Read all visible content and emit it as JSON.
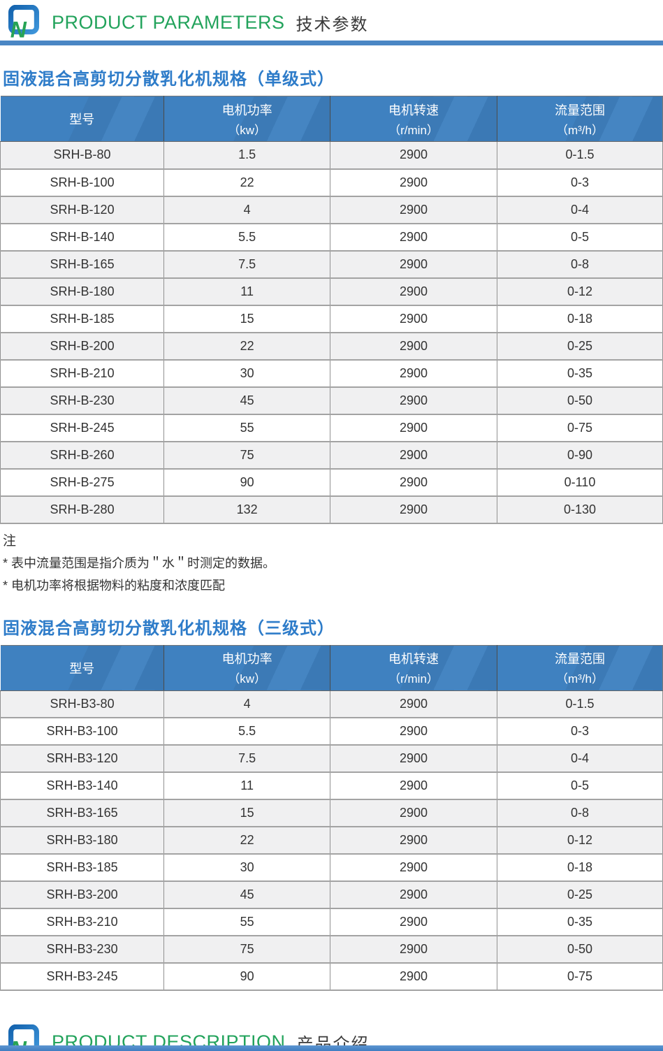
{
  "header": {
    "title_en": "PRODUCT PARAMETERS",
    "title_cn": "技术参数"
  },
  "footer": {
    "title_en": "PRODUCT DESCRIPTION",
    "title_cn": "产品介绍"
  },
  "colors": {
    "banner_green": "#23a35c",
    "banner_cn_gray": "#3a3a3a",
    "rule_blue": "#4a86c4",
    "section_title_blue": "#2e7cc9",
    "table_header_blue": "#3f81c0",
    "shaded_row": "#f0f0f1"
  },
  "notes": {
    "label": "注",
    "items": [
      "* 表中流量范围是指介质为＂水＂时测定的数据。",
      "* 电机功率将根据物料的粘度和浓度匹配"
    ]
  },
  "tables": [
    {
      "title": "固液混合高剪切分散乳化机规格（单级式）",
      "columns": [
        {
          "title": "型号",
          "unit": ""
        },
        {
          "title": "电机功率",
          "unit": "（kw）"
        },
        {
          "title": "电机转速",
          "unit": "（r/min）"
        },
        {
          "title": "流量范围",
          "unit": "（m³/h）"
        }
      ],
      "rows": [
        {
          "cells": [
            "SRH-B-80",
            "1.5",
            "2900",
            "0-1.5"
          ],
          "shaded": true
        },
        {
          "cells": [
            "SRH-B-100",
            "22",
            "2900",
            "0-3"
          ],
          "shaded": false
        },
        {
          "cells": [
            "SRH-B-120",
            "4",
            "2900",
            "0-4"
          ],
          "shaded": true
        },
        {
          "cells": [
            "SRH-B-140",
            "5.5",
            "2900",
            "0-5"
          ],
          "shaded": false
        },
        {
          "cells": [
            "SRH-B-165",
            "7.5",
            "2900",
            "0-8"
          ],
          "shaded": true
        },
        {
          "cells": [
            "SRH-B-180",
            "11",
            "2900",
            "0-12"
          ],
          "shaded": true
        },
        {
          "cells": [
            "SRH-B-185",
            "15",
            "2900",
            "0-18"
          ],
          "shaded": false
        },
        {
          "cells": [
            "SRH-B-200",
            "22",
            "2900",
            "0-25"
          ],
          "shaded": true
        },
        {
          "cells": [
            "SRH-B-210",
            "30",
            "2900",
            "0-35"
          ],
          "shaded": false
        },
        {
          "cells": [
            "SRH-B-230",
            "45",
            "2900",
            "0-50"
          ],
          "shaded": true
        },
        {
          "cells": [
            "SRH-B-245",
            "55",
            "2900",
            "0-75"
          ],
          "shaded": false
        },
        {
          "cells": [
            "SRH-B-260",
            "75",
            "2900",
            "0-90"
          ],
          "shaded": true
        },
        {
          "cells": [
            "SRH-B-275",
            "90",
            "2900",
            "0-110"
          ],
          "shaded": false
        },
        {
          "cells": [
            "SRH-B-280",
            "132",
            "2900",
            "0-130"
          ],
          "shaded": true
        }
      ]
    },
    {
      "title": "固液混合高剪切分散乳化机规格（三级式）",
      "columns": [
        {
          "title": "型号",
          "unit": ""
        },
        {
          "title": "电机功率",
          "unit": "（kw）"
        },
        {
          "title": "电机转速",
          "unit": "（r/min）"
        },
        {
          "title": "流量范围",
          "unit": "（m³/h）"
        }
      ],
      "rows": [
        {
          "cells": [
            "SRH-B3-80",
            "4",
            "2900",
            "0-1.5"
          ],
          "shaded": true
        },
        {
          "cells": [
            "SRH-B3-100",
            "5.5",
            "2900",
            "0-3"
          ],
          "shaded": false
        },
        {
          "cells": [
            "SRH-B3-120",
            "7.5",
            "2900",
            "0-4"
          ],
          "shaded": true
        },
        {
          "cells": [
            "SRH-B3-140",
            "11",
            "2900",
            "0-5"
          ],
          "shaded": false
        },
        {
          "cells": [
            "SRH-B3-165",
            "15",
            "2900",
            "0-8"
          ],
          "shaded": true
        },
        {
          "cells": [
            "SRH-B3-180",
            "22",
            "2900",
            "0-12"
          ],
          "shaded": true
        },
        {
          "cells": [
            "SRH-B3-185",
            "30",
            "2900",
            "0-18"
          ],
          "shaded": false
        },
        {
          "cells": [
            "SRH-B3-200",
            "45",
            "2900",
            "0-25"
          ],
          "shaded": true
        },
        {
          "cells": [
            "SRH-B3-210",
            "55",
            "2900",
            "0-35"
          ],
          "shaded": false
        },
        {
          "cells": [
            "SRH-B3-230",
            "75",
            "2900",
            "0-50"
          ],
          "shaded": true
        },
        {
          "cells": [
            "SRH-B3-245",
            "90",
            "2900",
            "0-75"
          ],
          "shaded": false
        }
      ]
    }
  ]
}
